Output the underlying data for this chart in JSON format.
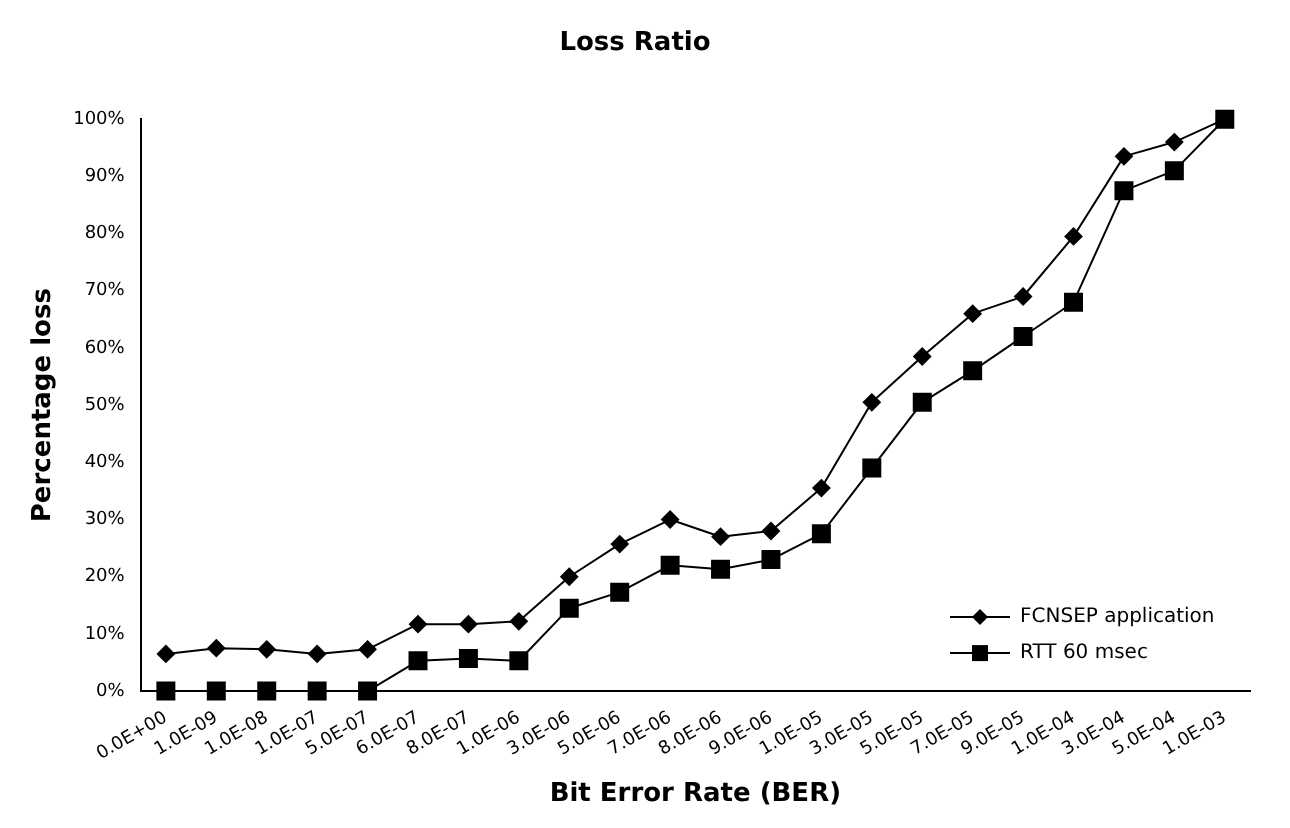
{
  "chart_data": {
    "type": "line",
    "title": "Loss Ratio",
    "xlabel": "Bit Error Rate (BER)",
    "ylabel": "Percentage loss",
    "categories": [
      "0.0E+00",
      "1.0E-09",
      "1.0E-08",
      "1.0E-07",
      "5.0E-07",
      "6.0E-07",
      "8.0E-07",
      "1.0E-06",
      "3.0E-06",
      "5.0E-06",
      "7.0E-06",
      "8.0E-06",
      "9.0E-06",
      "1.0E-05",
      "3.0E-05",
      "5.0E-05",
      "7.0E-05",
      "9.0E-05",
      "1.0E-04",
      "3.0E-04",
      "5.0E-04",
      "1.0E-03"
    ],
    "series": [
      {
        "name": "FCNSEP application",
        "color": "#000000",
        "marker": "diamond",
        "values": [
          6.5,
          7.5,
          7.3,
          6.5,
          7.3,
          11.7,
          11.7,
          12.2,
          20,
          25.7,
          30,
          27,
          28,
          35.5,
          50.5,
          58.5,
          66,
          69,
          79.5,
          93.5,
          96,
          100
        ]
      },
      {
        "name": "RTT 60 msec",
        "color": "#000000",
        "marker": "square",
        "values": [
          0,
          0,
          0,
          0,
          0,
          5.3,
          5.7,
          5.3,
          14.5,
          17.3,
          22,
          21.3,
          23,
          27.5,
          39,
          50.5,
          56,
          62,
          68,
          87.5,
          91,
          100
        ]
      }
    ],
    "ylim": [
      0,
      100
    ],
    "yticks": [
      {
        "value": 0,
        "label": "0%"
      },
      {
        "value": 10,
        "label": "10%"
      },
      {
        "value": 20,
        "label": "20%"
      },
      {
        "value": 30,
        "label": "30%"
      },
      {
        "value": 40,
        "label": "40%"
      },
      {
        "value": 50,
        "label": "50%"
      },
      {
        "value": 60,
        "label": "60%"
      },
      {
        "value": 70,
        "label": "70%"
      },
      {
        "value": 80,
        "label": "80%"
      },
      {
        "value": 90,
        "label": "90%"
      },
      {
        "value": 100,
        "label": "100%"
      }
    ],
    "grid": false,
    "legend": "bottom right",
    "line_style": "solid"
  }
}
